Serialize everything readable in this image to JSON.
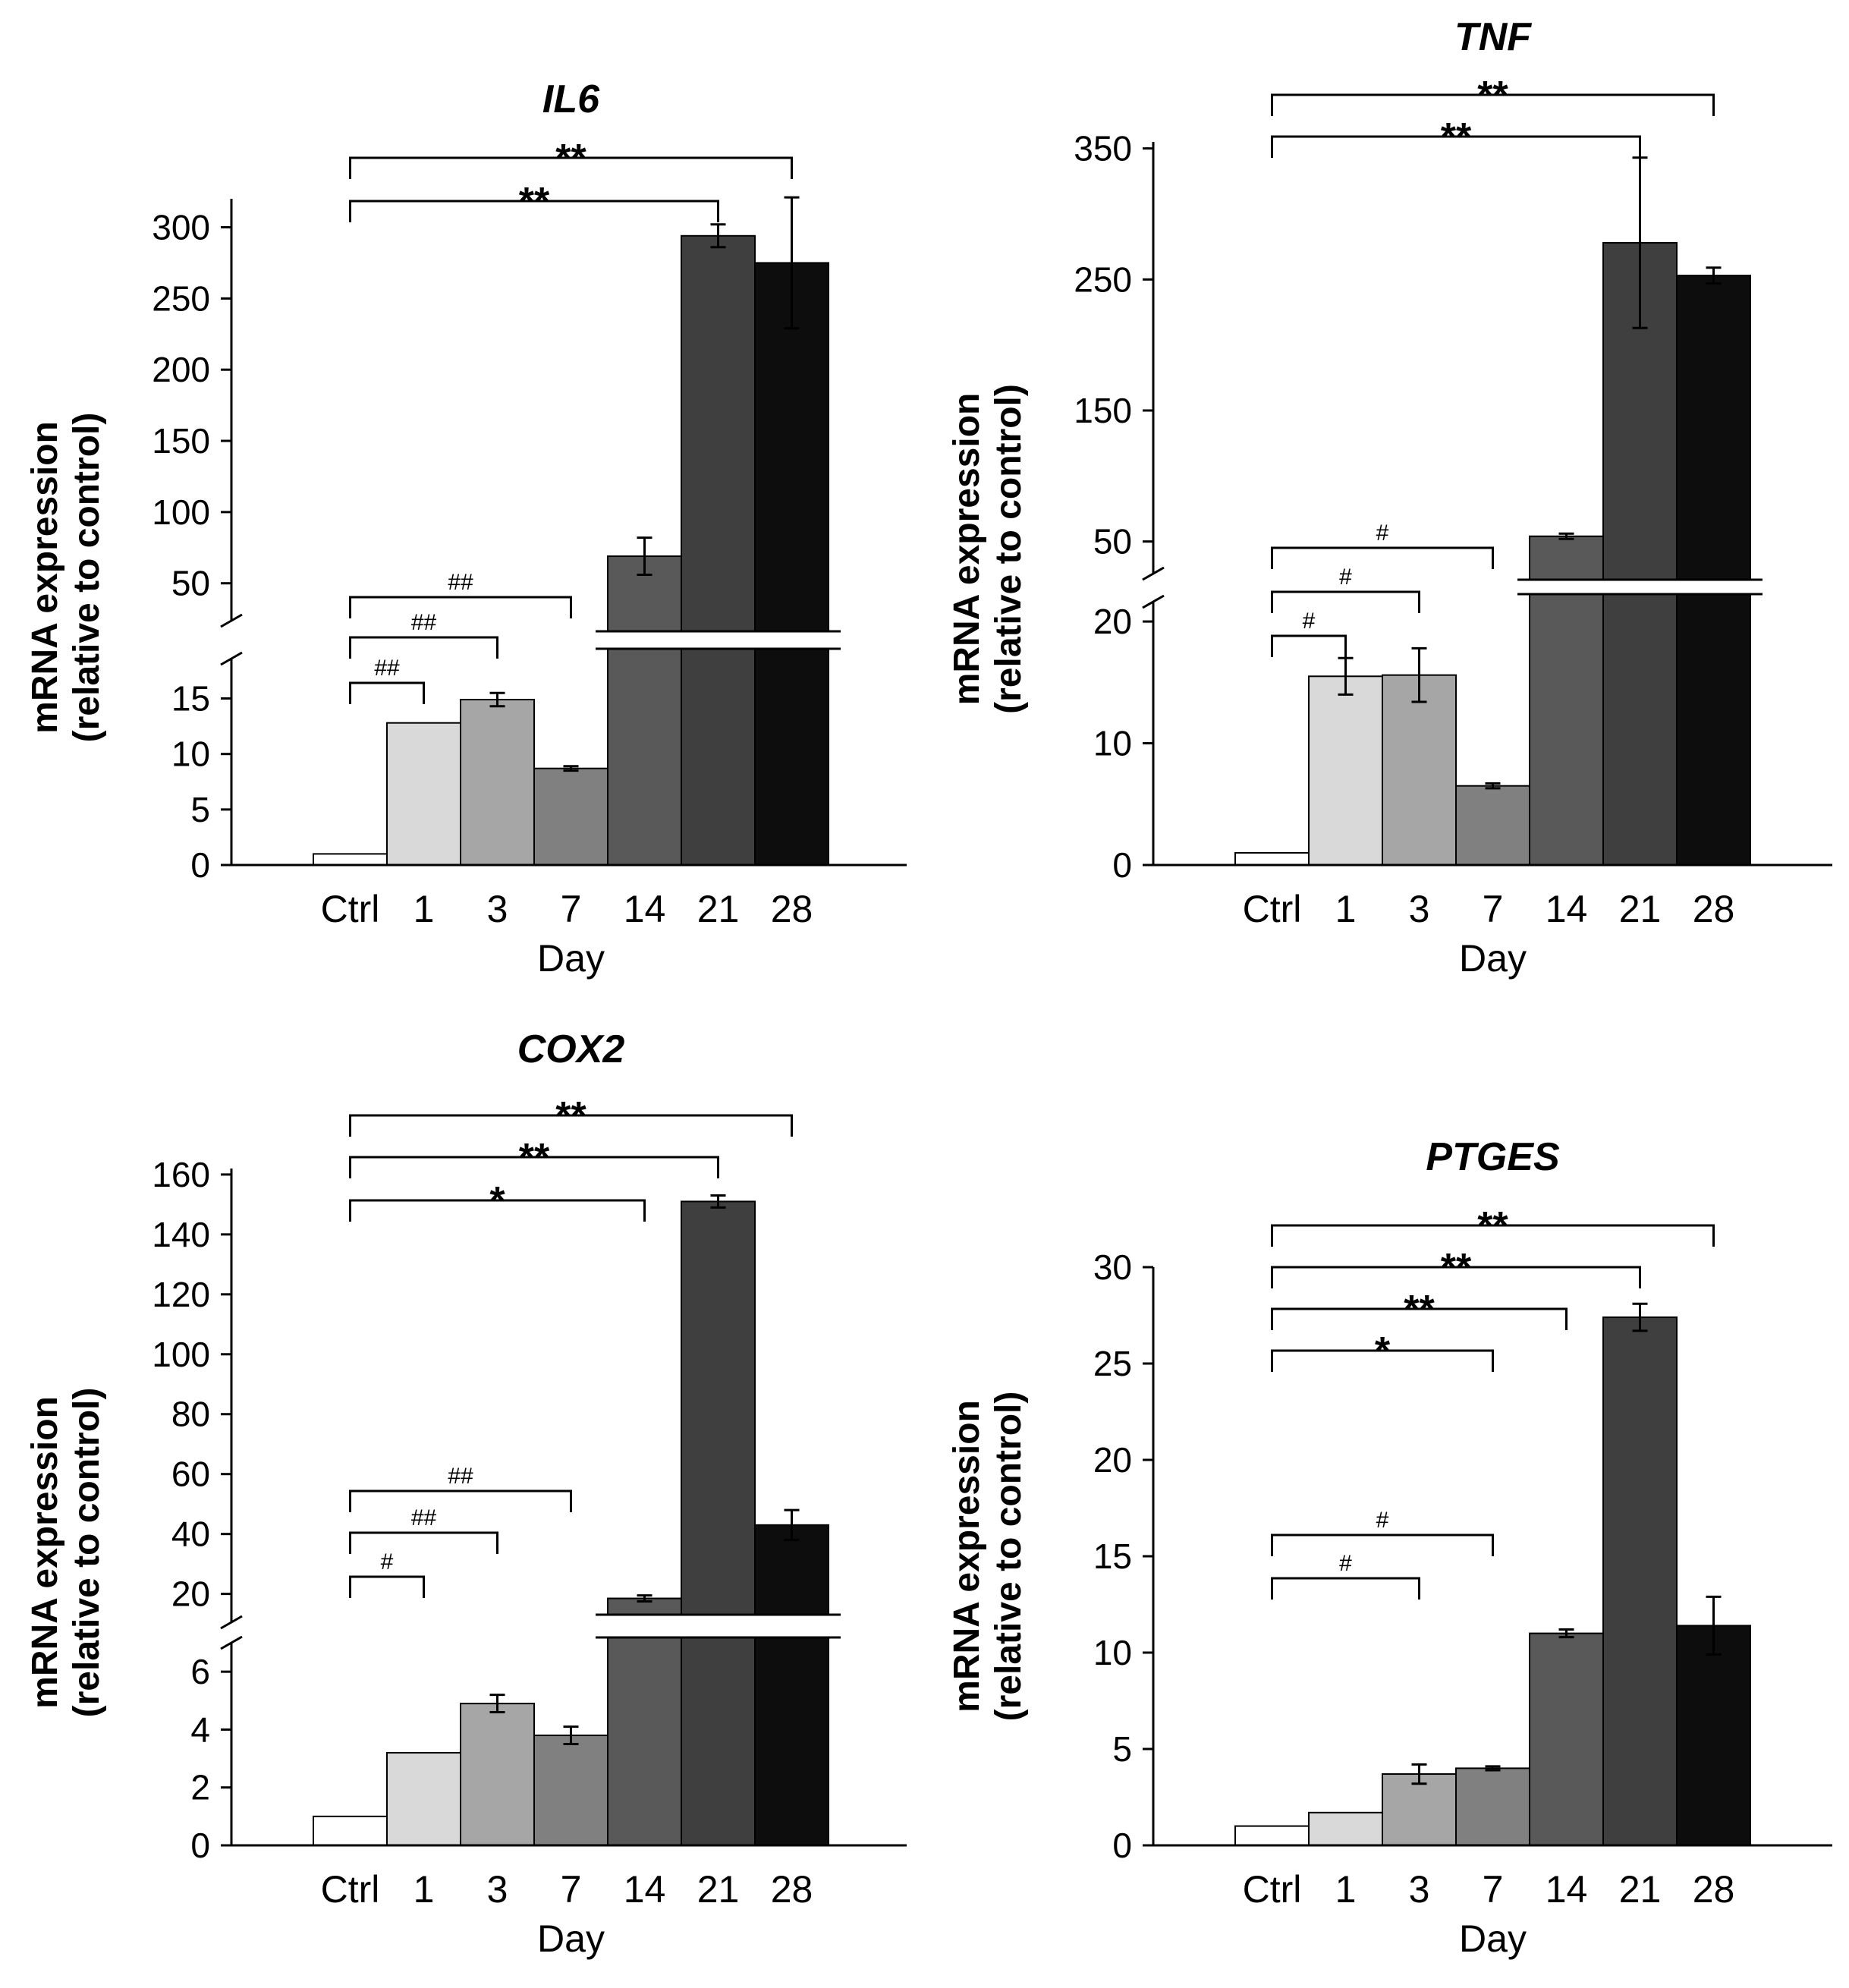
{
  "chart_data": [
    {
      "type": "bar",
      "title": "IL6",
      "xlabel": "Day",
      "ylabel": "mRNA expression (relative to control)",
      "categories": [
        "Ctrl",
        "1",
        "3",
        "7",
        "14",
        "21",
        "28"
      ],
      "values": [
        1,
        12.8,
        14.9,
        8.7,
        69,
        294,
        275
      ],
      "errors": [
        0,
        0,
        0.6,
        0.2,
        13,
        8,
        46
      ],
      "y_break": {
        "lower": [
          0,
          19
        ],
        "upper": [
          20,
          320
        ]
      },
      "lower_ticks": [
        0,
        5,
        10,
        15
      ],
      "upper_ticks": [
        50,
        100,
        150,
        200,
        250,
        300
      ],
      "annotations": [
        {
          "from": "Ctrl",
          "to": "28",
          "label": "**"
        },
        {
          "from": "Ctrl",
          "to": "21",
          "label": "**"
        },
        {
          "from": "Ctrl",
          "to": "7",
          "label": "##"
        },
        {
          "from": "Ctrl",
          "to": "3",
          "label": "##"
        },
        {
          "from": "Ctrl",
          "to": "1",
          "label": "##"
        }
      ]
    },
    {
      "type": "bar",
      "title": "TNF",
      "xlabel": "Day",
      "ylabel": "mRNA expression (relative to control)",
      "categories": [
        "Ctrl",
        "1",
        "3",
        "7",
        "14",
        "21",
        "28"
      ],
      "values": [
        1,
        15.5,
        15.6,
        6.5,
        54,
        278,
        253
      ],
      "errors": [
        0,
        1.5,
        2.2,
        0.2,
        2,
        65,
        6
      ],
      "y_break": {
        "lower": [
          0,
          22
        ],
        "upper": [
          22,
          355
        ]
      },
      "lower_ticks": [
        0,
        10,
        20
      ],
      "upper_ticks": [
        50,
        150,
        250,
        350
      ],
      "annotations": [
        {
          "from": "Ctrl",
          "to": "28",
          "label": "**"
        },
        {
          "from": "Ctrl",
          "to": "21",
          "label": "**"
        },
        {
          "from": "Ctrl",
          "to": "7",
          "label": "#"
        },
        {
          "from": "Ctrl",
          "to": "3",
          "label": "#"
        },
        {
          "from": "Ctrl",
          "to": "1",
          "label": "#"
        }
      ]
    },
    {
      "type": "bar",
      "title": "COX2",
      "xlabel": "Day",
      "ylabel": "mRNA expression (relative to control)",
      "categories": [
        "Ctrl",
        "1",
        "3",
        "7",
        "14",
        "21",
        "28"
      ],
      "values": [
        1,
        3.2,
        4.9,
        3.8,
        18.5,
        151,
        43
      ],
      "errors": [
        0,
        0,
        0.3,
        0.3,
        1,
        2,
        5
      ],
      "y_break": {
        "lower": [
          0,
          7
        ],
        "upper": [
          8,
          162
        ]
      },
      "lower_ticks": [
        0,
        2,
        4,
        6
      ],
      "upper_ticks": [
        20,
        40,
        60,
        80,
        100,
        120,
        140,
        160
      ],
      "annotations": [
        {
          "from": "Ctrl",
          "to": "28",
          "label": "**"
        },
        {
          "from": "Ctrl",
          "to": "21",
          "label": "**"
        },
        {
          "from": "Ctrl",
          "to": "14",
          "label": "*"
        },
        {
          "from": "Ctrl",
          "to": "7",
          "label": "##"
        },
        {
          "from": "Ctrl",
          "to": "3",
          "label": "##"
        },
        {
          "from": "Ctrl",
          "to": "1",
          "label": "#"
        }
      ]
    },
    {
      "type": "bar",
      "title": "PTGES",
      "xlabel": "Day",
      "ylabel": "mRNA expression (relative to control)",
      "categories": [
        "Ctrl",
        "1",
        "3",
        "7",
        "14",
        "21",
        "28"
      ],
      "values": [
        1,
        1.7,
        3.7,
        4,
        11,
        27.4,
        11.4
      ],
      "errors": [
        0,
        0,
        0.5,
        0.1,
        0.2,
        0.7,
        1.5
      ],
      "ylim": [
        0,
        30
      ],
      "ticks": [
        0,
        5,
        10,
        15,
        20,
        25,
        30
      ],
      "annotations": [
        {
          "from": "Ctrl",
          "to": "28",
          "label": "**"
        },
        {
          "from": "Ctrl",
          "to": "21",
          "label": "**"
        },
        {
          "from": "Ctrl",
          "to": "14",
          "label": "**"
        },
        {
          "from": "Ctrl",
          "to": "7",
          "label": "*"
        },
        {
          "from": "Ctrl",
          "to": "7",
          "label": "#"
        },
        {
          "from": "Ctrl",
          "to": "3",
          "label": "#"
        }
      ]
    }
  ],
  "colors": {
    "bars": [
      "#ffffff",
      "#d9d9d9",
      "#a6a6a6",
      "#808080",
      "#595959",
      "#3f3f3f",
      "#0d0d0d"
    ],
    "stroke": "#000000"
  }
}
